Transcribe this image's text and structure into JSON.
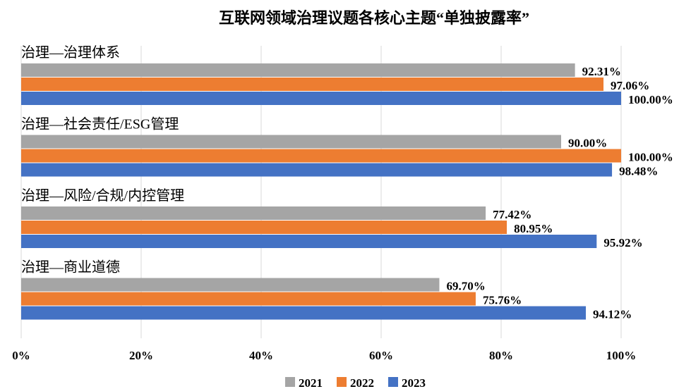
{
  "chart_data": {
    "type": "barh",
    "title": "互联网领域治理议题各核心主题“单独披露率”",
    "categories": [
      "治理—治理体系",
      "治理—社会责任/ESG管理",
      "治理—风险/合规/内控管理",
      "治理—商业道德"
    ],
    "series": [
      {
        "name": "2021",
        "color": "#a5a5a5",
        "values": [
          92.31,
          90.0,
          77.42,
          69.7
        ],
        "value_labels": [
          "92.31%",
          "90.00%",
          "77.42%",
          "69.70%"
        ]
      },
      {
        "name": "2022",
        "color": "#ed7d31",
        "values": [
          97.06,
          100.0,
          80.95,
          75.76
        ],
        "value_labels": [
          "97.06%",
          "100.00%",
          "80.95%",
          "75.76%"
        ]
      },
      {
        "name": "2023",
        "color": "#4472c4",
        "values": [
          100.0,
          98.48,
          95.92,
          94.12
        ],
        "value_labels": [
          "100.00%",
          "98.48%",
          "95.92%",
          "94.12%"
        ]
      }
    ],
    "xlim": [
      0,
      100
    ],
    "xticks": [
      {
        "value": 0,
        "label": "0%"
      },
      {
        "value": 20,
        "label": "20%"
      },
      {
        "value": 40,
        "label": "40%"
      },
      {
        "value": 60,
        "label": "60%"
      },
      {
        "value": 80,
        "label": "80%"
      },
      {
        "value": 100,
        "label": "100%"
      }
    ],
    "grid": true,
    "legend": "bottom"
  }
}
